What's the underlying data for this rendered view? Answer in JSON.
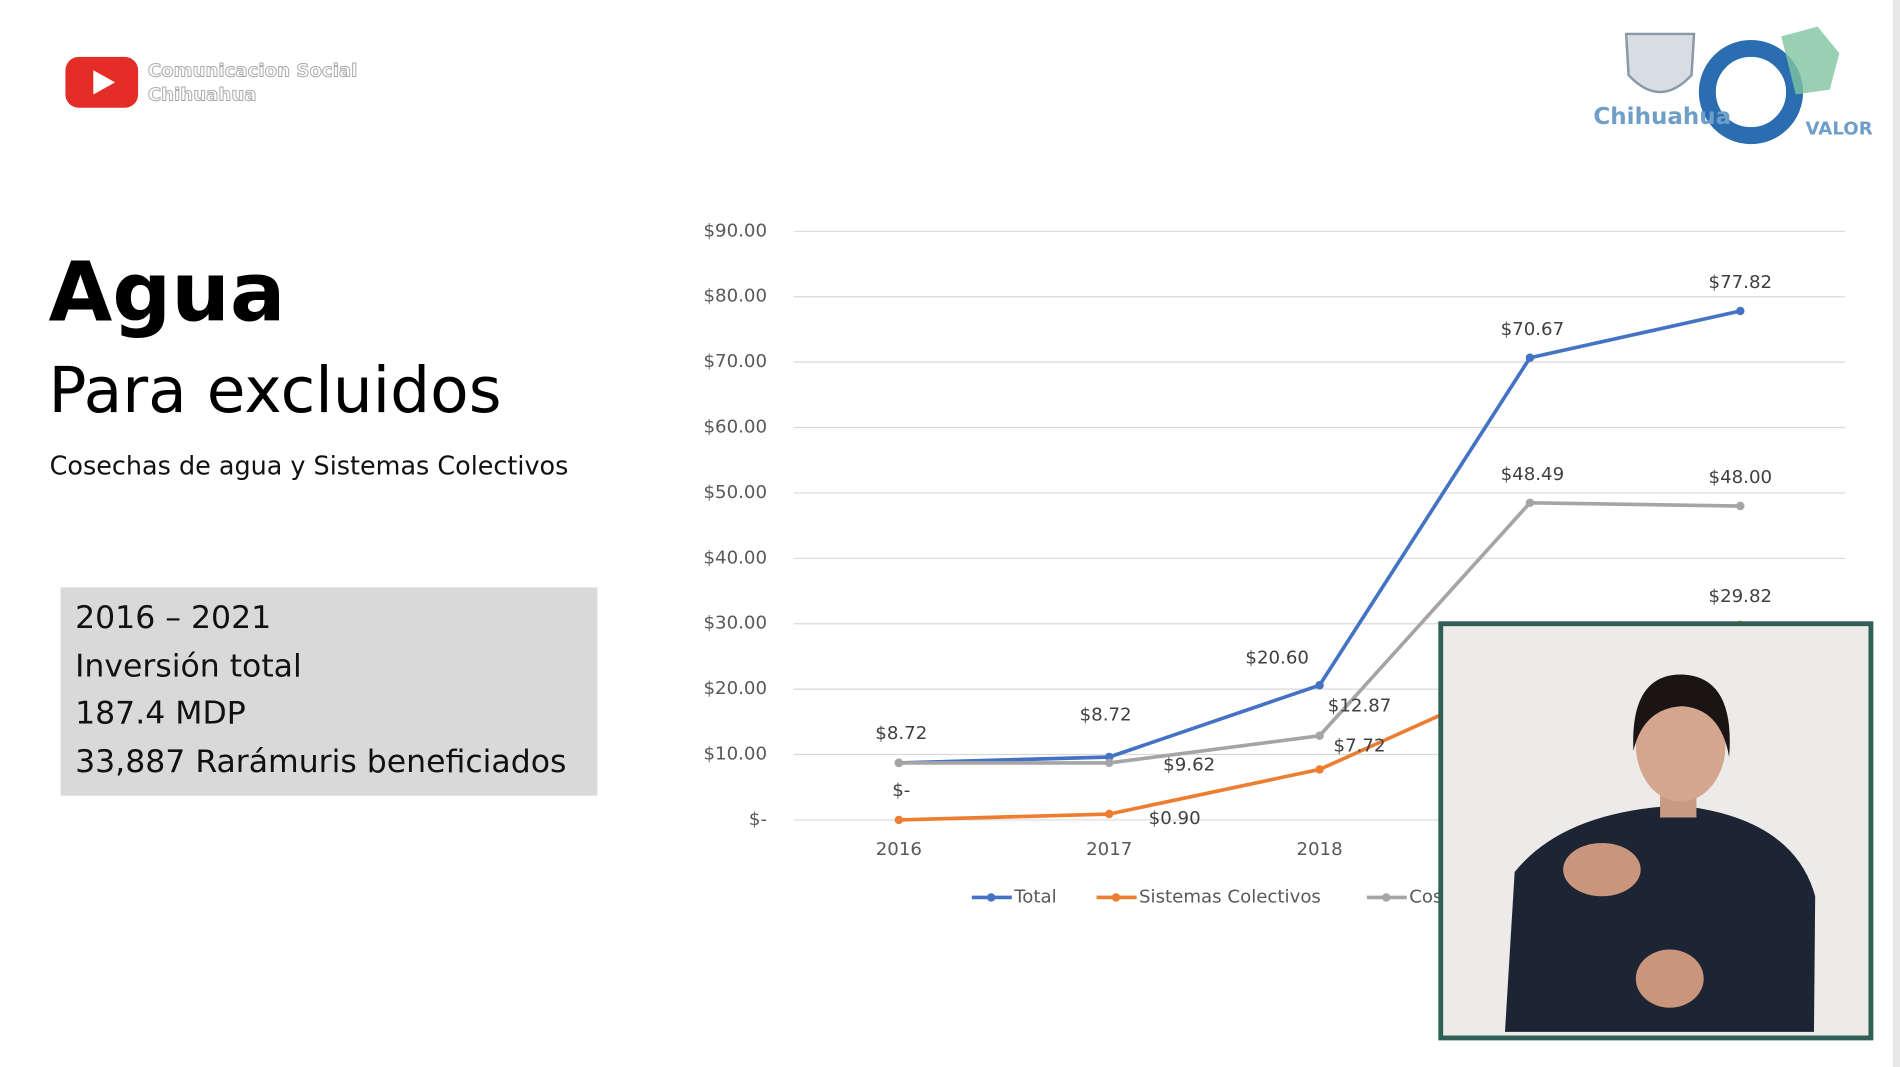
{
  "watermark": {
    "channel": [
      "Comunicacion Social",
      "Chihuahua"
    ]
  },
  "logo": {
    "state": "Chihuahua",
    "program": "VALOR"
  },
  "slide": {
    "title": "Agua",
    "subtitle": "Para excluidos",
    "description": "Cosechas de agua y Sistemas Colectivos",
    "box": [
      "2016 – 2021",
      "Inversión total",
      "187.4 MDP",
      "33,887 Rarámuris beneficiados"
    ]
  },
  "chart_data": {
    "type": "line",
    "categories": [
      "2016",
      "2017",
      "2018",
      null,
      null
    ],
    "series": [
      {
        "name": "Total",
        "color": "#4472c4",
        "values": [
          8.72,
          9.62,
          20.6,
          70.67,
          77.82
        ],
        "value_labels": [
          "$8.72",
          "$9.62",
          "$20.60",
          "$70.67",
          "$77.82"
        ]
      },
      {
        "name": "Sistemas Colectivos",
        "color": "#ed7d31",
        "values": [
          0,
          0.9,
          7.72,
          22.18,
          29.82
        ],
        "value_labels": [
          "$-",
          "$0.90",
          "$7.72",
          null,
          "$29.82"
        ]
      },
      {
        "name": "Cosechas de agua",
        "color": "#a5a5a5",
        "values": [
          8.72,
          8.72,
          12.87,
          48.49,
          48.0
        ],
        "value_labels": [
          null,
          "$8.72",
          "$12.87",
          "$48.49",
          "$48.00"
        ]
      }
    ],
    "ylim": [
      0,
      90
    ],
    "yticks": [
      {
        "value": 0,
        "label": "$-"
      },
      {
        "value": 10,
        "label": "$10.00"
      },
      {
        "value": 20,
        "label": "$20.00"
      },
      {
        "value": 30,
        "label": "$30.00"
      },
      {
        "value": 40,
        "label": "$40.00"
      },
      {
        "value": 50,
        "label": "$50.00"
      },
      {
        "value": 60,
        "label": "$60.00"
      },
      {
        "value": 70,
        "label": "$70.00"
      },
      {
        "value": 80,
        "label": "$80.00"
      },
      {
        "value": 90,
        "label": "$90.00"
      }
    ],
    "grid": true,
    "legend": "bottom"
  }
}
